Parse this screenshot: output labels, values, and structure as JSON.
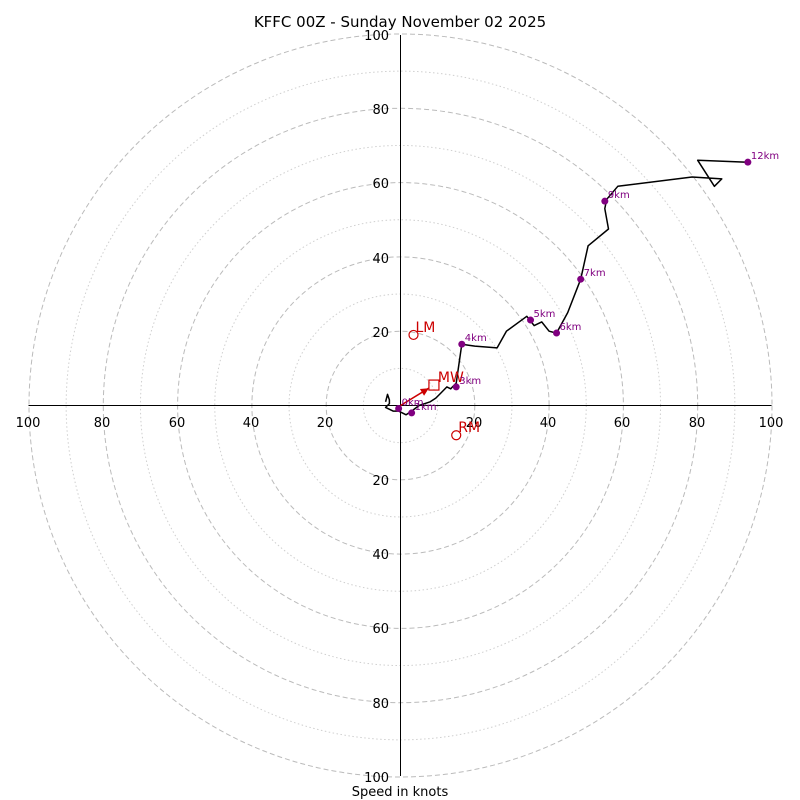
{
  "chart_data": {
    "type": "hodograph",
    "title": "KFFC 00Z - Sunday November 02 2025",
    "xlabel": "Speed in knots",
    "units": "knots",
    "range": [
      -100,
      100
    ],
    "rings_major": [
      20,
      40,
      60,
      80,
      100
    ],
    "rings_minor": [
      10,
      30,
      50,
      70,
      90
    ],
    "tick_labels": {
      "left": [
        "100",
        "80",
        "60",
        "40",
        "20"
      ],
      "right": [
        "20",
        "40",
        "60",
        "80",
        "100"
      ],
      "top": [
        "20",
        "40",
        "60",
        "80",
        "100"
      ],
      "bottom": [
        "20",
        "40",
        "60",
        "80",
        "100"
      ]
    },
    "colors": {
      "trace": "#000000",
      "height_marker": "#800080",
      "motion": "#cc0000",
      "grid": "#bbbbbb"
    },
    "trace": [
      [
        -4,
        1
      ],
      [
        -3.5,
        3
      ],
      [
        -3,
        1.5
      ],
      [
        -3,
        0.5
      ],
      [
        -4,
        -0.5
      ],
      [
        -2,
        -1.5
      ],
      [
        -0.5,
        -1.5
      ],
      [
        1.5,
        -2.5
      ],
      [
        3,
        -1.5
      ],
      [
        5,
        0
      ],
      [
        8,
        1
      ],
      [
        9.5,
        2
      ],
      [
        11,
        3.5
      ],
      [
        12.5,
        5
      ],
      [
        13.5,
        4.5
      ],
      [
        14,
        5
      ],
      [
        15,
        6
      ],
      [
        16.5,
        16.5
      ],
      [
        20,
        16
      ],
      [
        26,
        15.5
      ],
      [
        28.5,
        20
      ],
      [
        34,
        24
      ],
      [
        36,
        21.5
      ],
      [
        38,
        22.5
      ],
      [
        40,
        20
      ],
      [
        42,
        19.5
      ],
      [
        45,
        25
      ],
      [
        48.5,
        34
      ],
      [
        50.5,
        43
      ],
      [
        56,
        47.5
      ],
      [
        55,
        53
      ],
      [
        55.5,
        55.5
      ],
      [
        58.5,
        59
      ],
      [
        78.5,
        61.5
      ],
      [
        86.5,
        61
      ],
      [
        84.5,
        59
      ],
      [
        80,
        66
      ],
      [
        93.5,
        65.5
      ]
    ],
    "dashed_segment": [
      [
        86.5,
        61
      ],
      [
        93.5,
        65.5
      ]
    ],
    "height_markers": [
      {
        "label": "0km",
        "u": -0.5,
        "v": -0.8
      },
      {
        "label": "1km",
        "u": 3,
        "v": -2
      },
      {
        "label": "3km",
        "u": 15,
        "v": 5
      },
      {
        "label": "4km",
        "u": 16.5,
        "v": 16.5
      },
      {
        "label": "5km",
        "u": 35,
        "v": 23
      },
      {
        "label": "6km",
        "u": 42,
        "v": 19.5
      },
      {
        "label": "7km",
        "u": 48.5,
        "v": 34
      },
      {
        "label": "9km",
        "u": 55,
        "v": 55
      },
      {
        "label": "12km",
        "u": 93.5,
        "v": 65.5
      }
    ],
    "storm_motion": {
      "LM": {
        "label": "LM",
        "u": 3.5,
        "v": 19
      },
      "RM": {
        "label": "RM",
        "u": 15,
        "v": -8
      },
      "MW": {
        "label": "MW",
        "u": 9,
        "v": 5.5
      }
    }
  }
}
